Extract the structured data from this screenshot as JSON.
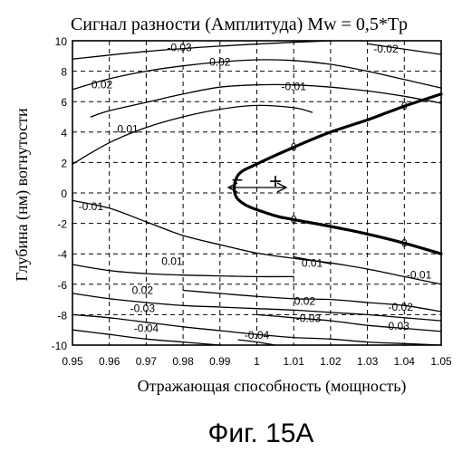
{
  "chart_data": {
    "type": "line",
    "title": "Сигнал разности (Амплитуда) Mw = 0,5*Tp",
    "xlabel": "Отражающая способность (мощность)",
    "ylabel": "Глубина (нм) вогнутости",
    "caption": "Фиг. 15А",
    "xlim": [
      0.95,
      1.05
    ],
    "ylim": [
      -10,
      10
    ],
    "x_ticks": [
      0.95,
      0.96,
      0.97,
      0.98,
      0.99,
      1,
      1.01,
      1.02,
      1.03,
      1.04,
      1.05
    ],
    "x_tick_labels": [
      "0.95",
      "0.96",
      "0.97",
      "0.98",
      "0.99",
      "1",
      "1.01",
      "1.02",
      "1.03",
      "1.04",
      "1.05"
    ],
    "y_ticks": [
      10,
      8,
      6,
      4,
      2,
      0,
      -2,
      -4,
      -6,
      -8,
      -10
    ],
    "y_tick_labels": [
      "10",
      "8",
      "6",
      "4",
      "2",
      "0",
      "-2",
      "-4",
      "-6",
      "-8",
      "-10"
    ],
    "grid": true,
    "series": [
      {
        "label": "-0.03",
        "bold": false,
        "points": [
          [
            0.95,
            8.8
          ],
          [
            0.97,
            9.3
          ],
          [
            0.99,
            9.65
          ],
          [
            1.01,
            9.9
          ],
          [
            1.02,
            10.0
          ]
        ]
      },
      {
        "label": "-0.02",
        "bold": false,
        "points": [
          [
            1.03,
            9.8
          ],
          [
            1.05,
            9.1
          ]
        ]
      },
      {
        "label": "0.02",
        "bold": false,
        "points": [
          [
            0.95,
            6.8
          ],
          [
            0.96,
            7.5
          ],
          [
            0.97,
            8.0
          ],
          [
            0.98,
            8.35
          ],
          [
            0.99,
            8.6
          ],
          [
            1.0,
            8.75
          ],
          [
            1.01,
            8.7
          ],
          [
            1.02,
            8.45
          ],
          [
            1.03,
            8.0
          ],
          [
            1.04,
            7.45
          ],
          [
            1.05,
            6.9
          ]
        ]
      },
      {
        "label": "-0.01",
        "bold": false,
        "points": [
          [
            1.05,
            5.9
          ],
          [
            1.04,
            6.35
          ],
          [
            1.03,
            6.7
          ],
          [
            1.02,
            6.95
          ],
          [
            1.01,
            7.1
          ],
          [
            1.0,
            7.1
          ],
          [
            0.99,
            6.95
          ],
          [
            0.98,
            6.5
          ],
          [
            0.97,
            5.95
          ],
          [
            0.96,
            5.4
          ],
          [
            0.955,
            5.0
          ]
        ]
      },
      {
        "label": "0.01",
        "bold": false,
        "points": [
          [
            0.95,
            1.9
          ],
          [
            0.96,
            3.3
          ],
          [
            0.97,
            4.3
          ],
          [
            0.98,
            5.0
          ],
          [
            0.99,
            5.5
          ],
          [
            1.0,
            5.75
          ],
          [
            1.01,
            5.6
          ],
          [
            1.015,
            5.3
          ]
        ]
      },
      {
        "label": "0",
        "bold": true,
        "points": [
          [
            1.05,
            6.5
          ],
          [
            1.04,
            5.7
          ],
          [
            1.03,
            4.8
          ],
          [
            1.02,
            4.0
          ],
          [
            1.01,
            3.0
          ],
          [
            1.0,
            1.9
          ],
          [
            0.995,
            1.2
          ],
          [
            0.994,
            0.0
          ],
          [
            0.997,
            -0.8
          ],
          [
            1.005,
            -1.5
          ],
          [
            1.01,
            -1.75
          ],
          [
            1.02,
            -2.2
          ],
          [
            1.03,
            -2.7
          ],
          [
            1.04,
            -3.3
          ],
          [
            1.05,
            -4.0
          ]
        ]
      },
      {
        "label": "-0.01",
        "bold": false,
        "points": [
          [
            0.95,
            -0.5
          ],
          [
            0.96,
            -1.0
          ],
          [
            0.97,
            -1.9
          ],
          [
            0.98,
            -2.8
          ],
          [
            0.99,
            -3.4
          ],
          [
            1.0,
            -3.95
          ],
          [
            1.01,
            -4.3
          ],
          [
            1.02,
            -4.6
          ],
          [
            1.03,
            -5.0
          ],
          [
            1.04,
            -5.5
          ],
          [
            1.05,
            -6.0
          ]
        ]
      },
      {
        "label": "-0.01",
        "bold": false,
        "points": [
          [
            0.95,
            -4.7
          ],
          [
            0.96,
            -5.1
          ],
          [
            0.97,
            -5.3
          ],
          [
            0.98,
            -5.4
          ],
          [
            0.99,
            -5.45
          ],
          [
            1.0,
            -5.5
          ],
          [
            1.01,
            -5.5
          ]
        ]
      },
      {
        "label": "0.01",
        "bold": false,
        "points": [
          [
            1.01,
            -4.2
          ],
          [
            1.02,
            -4.65
          ]
        ]
      },
      {
        "label": "0.02",
        "bold": false,
        "points": [
          [
            0.95,
            -6.6
          ],
          [
            0.96,
            -6.95
          ],
          [
            0.97,
            -7.2
          ],
          [
            0.98,
            -7.4
          ],
          [
            0.99,
            -7.5
          ],
          [
            1.0,
            -7.6
          ],
          [
            1.01,
            -7.7
          ],
          [
            1.02,
            -7.85
          ],
          [
            1.03,
            -8.0
          ],
          [
            1.04,
            -8.2
          ],
          [
            1.05,
            -8.4
          ]
        ]
      },
      {
        "label": "-0.02",
        "bold": false,
        "points": [
          [
            0.98,
            -6.4
          ],
          [
            0.99,
            -6.6
          ],
          [
            1.0,
            -6.8
          ],
          [
            1.01,
            -6.95
          ],
          [
            1.02,
            -7.0
          ],
          [
            1.03,
            -7.2
          ],
          [
            1.04,
            -7.4
          ],
          [
            1.05,
            -7.8
          ]
        ]
      },
      {
        "label": "-0.03",
        "bold": false,
        "points": [
          [
            0.95,
            -8.0
          ],
          [
            0.96,
            -8.2
          ],
          [
            0.97,
            -8.5
          ],
          [
            0.98,
            -8.8
          ],
          [
            0.99,
            -9.05
          ],
          [
            1.0,
            -9.3
          ],
          [
            1.01,
            -9.5
          ],
          [
            1.02,
            -9.6
          ],
          [
            1.03,
            -9.8
          ],
          [
            1.04,
            -9.9
          ],
          [
            1.05,
            -10.0
          ]
        ]
      },
      {
        "label": "-0.03",
        "bold": false,
        "points": [
          [
            1.0,
            -8.0
          ],
          [
            1.01,
            -8.2
          ],
          [
            1.02,
            -8.4
          ],
          [
            1.03,
            -8.7
          ],
          [
            1.04,
            -8.9
          ],
          [
            1.05,
            -9.1
          ]
        ]
      },
      {
        "label": "-0.04",
        "bold": false,
        "points": [
          [
            0.95,
            -9.0
          ],
          [
            0.96,
            -9.3
          ],
          [
            0.97,
            -9.6
          ],
          [
            0.98,
            -9.8
          ],
          [
            0.99,
            -10.0
          ]
        ]
      },
      {
        "label": "-0.04",
        "bold": false,
        "points": [
          [
            0.995,
            -9.65
          ],
          [
            1.0,
            -9.8
          ],
          [
            1.005,
            -10.0
          ]
        ]
      }
    ],
    "contour_labels": [
      {
        "text": "-0.03",
        "x": 0.979,
        "y": 9.55
      },
      {
        "text": "0.02",
        "x": 0.99,
        "y": 8.6
      },
      {
        "text": "-0.02",
        "x": 1.035,
        "y": 9.45
      },
      {
        "text": "0.02",
        "x": 0.958,
        "y": 7.1
      },
      {
        "text": "-0.01",
        "x": 1.01,
        "y": 7.0
      },
      {
        "text": "0.01",
        "x": 0.965,
        "y": 4.2
      },
      {
        "text": "0",
        "x": 1.01,
        "y": 3.0
      },
      {
        "text": "0",
        "x": 1.04,
        "y": 5.7
      },
      {
        "text": "0",
        "x": 1.01,
        "y": -1.75
      },
      {
        "text": "0",
        "x": 1.04,
        "y": -3.3
      },
      {
        "text": "-0.01",
        "x": 0.955,
        "y": -0.9
      },
      {
        "text": "0.01",
        "x": 0.977,
        "y": -4.5
      },
      {
        "text": "0.01",
        "x": 1.015,
        "y": -4.6
      },
      {
        "text": "-0.01",
        "x": 1.044,
        "y": -5.4
      },
      {
        "text": "0.02",
        "x": 0.969,
        "y": -6.4
      },
      {
        "text": "0.02",
        "x": 1.013,
        "y": -7.1
      },
      {
        "text": "-0.02",
        "x": 1.039,
        "y": -7.5
      },
      {
        "text": "-0.03",
        "x": 0.969,
        "y": -7.6
      },
      {
        "text": "-0.03",
        "x": 1.014,
        "y": -8.25
      },
      {
        "text": "-0.03",
        "x": 1.038,
        "y": -8.75
      },
      {
        "text": "-0.04",
        "x": 0.97,
        "y": -8.9
      },
      {
        "text": "-0.04",
        "x": 1.0,
        "y": -9.35
      }
    ],
    "annotations": {
      "minus": "−",
      "plus": "+",
      "arrow_y": 0
    }
  }
}
